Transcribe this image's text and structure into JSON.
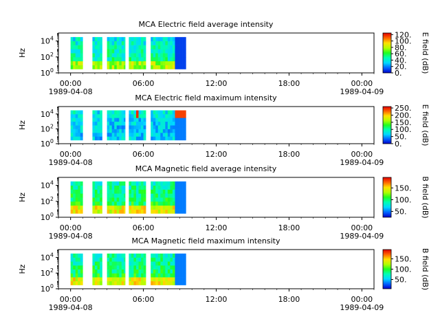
{
  "chart_data": [
    {
      "type": "heatmap",
      "title": "MCA  Electric field average intensity",
      "ylabel": "Hz",
      "y_scale": "log",
      "ylim": [
        1,
        100000
      ],
      "y_ticks": [
        {
          "value": 1,
          "base": "10",
          "exp": "0"
        },
        {
          "value": 100,
          "base": "10",
          "exp": "2"
        },
        {
          "value": 10000,
          "base": "10",
          "exp": "4"
        }
      ],
      "x_ticks": [
        "00:00",
        "06:00",
        "12:00",
        "18:00",
        "00:00"
      ],
      "x_dates": [
        "1989-04-08",
        "1989-04-09"
      ],
      "xlim_hours": [
        -1,
        25
      ],
      "colorbar": {
        "label": "E field (dB)",
        "range": [
          0,
          125
        ],
        "ticks": [
          "0.",
          "20.",
          "40.",
          "60.",
          "80.",
          "100.",
          "120."
        ]
      },
      "data_segments_hours": [
        [
          0.0,
          1.0
        ],
        [
          1.8,
          2.6
        ],
        [
          3.0,
          4.5
        ],
        [
          4.8,
          6.2
        ],
        [
          6.6,
          8.6
        ],
        [
          8.6,
          9.5
        ]
      ]
    },
    {
      "type": "heatmap",
      "title": "MCA  Electric field maximum intensity",
      "ylabel": "Hz",
      "y_scale": "log",
      "ylim": [
        1,
        100000
      ],
      "y_ticks": [
        {
          "value": 1,
          "base": "10",
          "exp": "0"
        },
        {
          "value": 100,
          "base": "10",
          "exp": "2"
        },
        {
          "value": 10000,
          "base": "10",
          "exp": "4"
        }
      ],
      "x_ticks": [
        "00:00",
        "06:00",
        "12:00",
        "18:00",
        "00:00"
      ],
      "x_dates": [
        "1989-04-08",
        "1989-04-09"
      ],
      "xlim_hours": [
        -1,
        25
      ],
      "colorbar": {
        "label": "E field (dB)",
        "range": [
          0,
          260
        ],
        "ticks": [
          "0.",
          "50.",
          "100.",
          "150.",
          "200.",
          "250."
        ]
      },
      "data_segments_hours": [
        [
          0.0,
          1.0
        ],
        [
          1.8,
          2.6
        ],
        [
          3.0,
          4.5
        ],
        [
          4.8,
          6.2
        ],
        [
          6.6,
          8.6
        ],
        [
          8.6,
          9.5
        ]
      ]
    },
    {
      "type": "heatmap",
      "title": "MCA  Magnetic field average intensity",
      "ylabel": "Hz",
      "y_scale": "log",
      "ylim": [
        1,
        100000
      ],
      "y_ticks": [
        {
          "value": 1,
          "base": "10",
          "exp": "0"
        },
        {
          "value": 100,
          "base": "10",
          "exp": "2"
        },
        {
          "value": 10000,
          "base": "10",
          "exp": "4"
        }
      ],
      "x_ticks": [
        "00:00",
        "06:00",
        "12:00",
        "18:00",
        "00:00"
      ],
      "x_dates": [
        "1989-04-08",
        "1989-04-09"
      ],
      "xlim_hours": [
        -1,
        25
      ],
      "colorbar": {
        "label": "B field (dB)",
        "range": [
          25,
          195
        ],
        "ticks": [
          "50.",
          "100.",
          "150."
        ]
      },
      "data_segments_hours": [
        [
          0.0,
          1.0
        ],
        [
          1.8,
          2.6
        ],
        [
          3.0,
          4.5
        ],
        [
          4.8,
          6.2
        ],
        [
          6.6,
          8.6
        ],
        [
          8.6,
          9.5
        ]
      ]
    },
    {
      "type": "heatmap",
      "title": "MCA  Magnetic field maximum intensity",
      "ylabel": "Hz",
      "y_scale": "log",
      "ylim": [
        1,
        100000
      ],
      "y_ticks": [
        {
          "value": 1,
          "base": "10",
          "exp": "0"
        },
        {
          "value": 100,
          "base": "10",
          "exp": "2"
        },
        {
          "value": 10000,
          "base": "10",
          "exp": "4"
        }
      ],
      "x_ticks": [
        "00:00",
        "06:00",
        "12:00",
        "18:00",
        "00:00"
      ],
      "x_dates": [
        "1989-04-08",
        "1989-04-09"
      ],
      "xlim_hours": [
        -1,
        25
      ],
      "colorbar": {
        "label": "B field (dB)",
        "range": [
          5,
          195
        ],
        "ticks": [
          "50.",
          "100.",
          "150."
        ]
      },
      "data_segments_hours": [
        [
          0.0,
          1.0
        ],
        [
          1.8,
          2.6
        ],
        [
          3.0,
          4.5
        ],
        [
          4.8,
          6.2
        ],
        [
          6.6,
          8.6
        ],
        [
          8.6,
          9.5
        ]
      ]
    }
  ]
}
